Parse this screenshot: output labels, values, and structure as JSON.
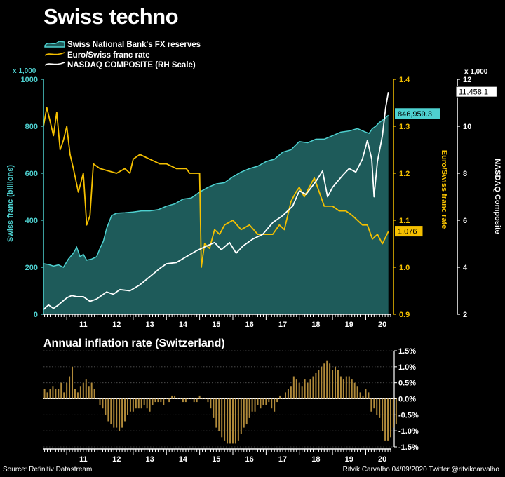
{
  "title": "Swiss techno",
  "source": "Source: Refinitiv Datastream",
  "credit": "Ritvik Carvalho 04/09/2020 Twitter @ritvikcarvalho",
  "colors": {
    "reserves": "#1e5b5a",
    "reserves_line": "#4ed1d0",
    "eurchf": "#f5c000",
    "nasdaq": "#ffffff",
    "inflation": "#b08a3a"
  },
  "chart_data": [
    {
      "type": "line",
      "title": "",
      "legend": [
        "Swiss National Bank's FX reserves",
        "Euro/Swiss franc rate",
        "NASDAQ COMPOSITE (RH Scale)"
      ],
      "legend_position": "top-left",
      "x_ticks": [
        "11",
        "12",
        "13",
        "14",
        "15",
        "16",
        "17",
        "18",
        "19",
        "20"
      ],
      "x_range": [
        2010.3,
        2020.75
      ],
      "axis_left": {
        "label": "Swiss franc (billions)",
        "unit": "x 1,000",
        "range": [
          0,
          1000
        ],
        "ticks": [
          "0",
          "200",
          "400",
          "600",
          "800",
          "1000"
        ]
      },
      "axis_mid": {
        "label": "Euro/Swiss franc rate",
        "range": [
          0.9,
          1.4
        ],
        "ticks": [
          "0.9",
          "1.0",
          "1.1",
          "1.2",
          "1.3",
          "1.4"
        ]
      },
      "axis_right": {
        "label": "NASDAQ Composite",
        "unit": "x 1,000",
        "range": [
          2,
          12
        ],
        "ticks": [
          "2",
          "4",
          "6",
          "8",
          "10",
          "12"
        ]
      },
      "series": [
        {
          "name": "Swiss National Bank's FX reserves",
          "axis": "left",
          "type": "area",
          "x": [
            2010.3,
            2010.45,
            2010.6,
            2010.75,
            2010.9,
            2011.05,
            2011.2,
            2011.3,
            2011.4,
            2011.5,
            2011.6,
            2011.75,
            2011.9,
            2012.0,
            2012.1,
            2012.2,
            2012.35,
            2012.5,
            2012.75,
            2013.0,
            2013.25,
            2013.5,
            2013.75,
            2014.0,
            2014.25,
            2014.5,
            2014.75,
            2015.0,
            2015.25,
            2015.5,
            2015.75,
            2016.0,
            2016.25,
            2016.5,
            2016.75,
            2017.0,
            2017.25,
            2017.5,
            2017.75,
            2018.0,
            2018.25,
            2018.5,
            2018.75,
            2019.0,
            2019.25,
            2019.5,
            2019.75,
            2020.0,
            2020.1,
            2020.2,
            2020.3,
            2020.4,
            2020.55,
            2020.68
          ],
          "values": [
            215,
            212,
            205,
            210,
            200,
            235,
            260,
            285,
            245,
            255,
            230,
            235,
            245,
            280,
            310,
            365,
            420,
            430,
            432,
            435,
            440,
            440,
            445,
            460,
            470,
            490,
            495,
            520,
            540,
            555,
            560,
            585,
            605,
            620,
            630,
            650,
            660,
            690,
            700,
            735,
            730,
            745,
            745,
            760,
            775,
            780,
            790,
            775,
            770,
            790,
            800,
            815,
            830,
            847
          ]
        },
        {
          "name": "Euro/Swiss franc rate",
          "axis": "mid",
          "x": [
            2010.3,
            2010.4,
            2010.5,
            2010.6,
            2010.7,
            2010.8,
            2010.9,
            2011.0,
            2011.1,
            2011.2,
            2011.35,
            2011.5,
            2011.6,
            2011.7,
            2011.8,
            2012.0,
            2012.5,
            2012.75,
            2012.9,
            2013.0,
            2013.2,
            2013.5,
            2013.8,
            2014.0,
            2014.3,
            2014.6,
            2014.7,
            2015.0,
            2015.05,
            2015.15,
            2015.3,
            2015.45,
            2015.6,
            2015.75,
            2016.0,
            2016.25,
            2016.5,
            2016.75,
            2017.0,
            2017.2,
            2017.4,
            2017.55,
            2017.75,
            2017.9,
            2018.0,
            2018.15,
            2018.3,
            2018.45,
            2018.6,
            2018.75,
            2018.9,
            2019.0,
            2019.2,
            2019.4,
            2019.6,
            2019.75,
            2019.9,
            2020.05,
            2020.2,
            2020.35,
            2020.5,
            2020.68
          ],
          "values": [
            1.3,
            1.34,
            1.31,
            1.28,
            1.33,
            1.25,
            1.27,
            1.3,
            1.24,
            1.21,
            1.16,
            1.2,
            1.09,
            1.11,
            1.22,
            1.21,
            1.2,
            1.21,
            1.2,
            1.23,
            1.24,
            1.23,
            1.22,
            1.22,
            1.21,
            1.21,
            1.2,
            1.2,
            1.0,
            1.05,
            1.04,
            1.08,
            1.07,
            1.09,
            1.1,
            1.08,
            1.09,
            1.07,
            1.07,
            1.07,
            1.09,
            1.08,
            1.14,
            1.16,
            1.17,
            1.15,
            1.17,
            1.19,
            1.16,
            1.13,
            1.13,
            1.13,
            1.12,
            1.12,
            1.11,
            1.1,
            1.09,
            1.09,
            1.06,
            1.07,
            1.05,
            1.076
          ]
        },
        {
          "name": "NASDAQ COMPOSITE (RH Scale)",
          "axis": "right",
          "x": [
            2010.3,
            2010.45,
            2010.6,
            2010.75,
            2011.0,
            2011.15,
            2011.3,
            2011.5,
            2011.7,
            2011.9,
            2012.2,
            2012.4,
            2012.6,
            2012.9,
            2013.2,
            2013.5,
            2013.8,
            2014.0,
            2014.3,
            2014.6,
            2014.9,
            2015.2,
            2015.45,
            2015.65,
            2015.9,
            2016.1,
            2016.3,
            2016.6,
            2016.9,
            2017.2,
            2017.5,
            2017.8,
            2018.0,
            2018.2,
            2018.5,
            2018.7,
            2018.85,
            2019.0,
            2019.3,
            2019.5,
            2019.7,
            2019.9,
            2020.05,
            2020.18,
            2020.25,
            2020.35,
            2020.5,
            2020.6,
            2020.68
          ],
          "values": [
            2.2,
            2.4,
            2.25,
            2.4,
            2.7,
            2.8,
            2.75,
            2.75,
            2.55,
            2.65,
            2.95,
            2.85,
            3.05,
            3.0,
            3.25,
            3.6,
            3.95,
            4.15,
            4.2,
            4.45,
            4.7,
            4.9,
            5.05,
            4.75,
            5.05,
            4.6,
            4.9,
            5.2,
            5.4,
            5.9,
            6.2,
            6.6,
            7.25,
            7.1,
            7.65,
            8.1,
            7.0,
            7.4,
            7.9,
            8.2,
            8.05,
            8.6,
            9.4,
            8.6,
            7.0,
            8.5,
            9.6,
            10.8,
            11.458
          ]
        }
      ],
      "value_labels": [
        {
          "series": "Swiss National Bank's FX reserves",
          "text": "846,959.3"
        },
        {
          "series": "Euro/Swiss franc rate",
          "text": "1.076"
        },
        {
          "series": "NASDAQ COMPOSITE (RH Scale)",
          "text": "11,458.1"
        }
      ]
    },
    {
      "type": "bar",
      "title": "Annual inflation rate (Switzerland)",
      "x_ticks": [
        "11",
        "12",
        "13",
        "14",
        "15",
        "16",
        "17",
        "18",
        "19",
        "20"
      ],
      "x_range": [
        2010.3,
        2020.75
      ],
      "axis": {
        "range": [
          -1.5,
          1.5
        ],
        "ticks": [
          "1.5%",
          "1.0%",
          "0.5%",
          "0.0%",
          "-0.5%",
          "-1.0%",
          "-1.5%"
        ]
      },
      "start": 2010.333,
      "frequency": "monthly",
      "values": [
        0.3,
        0.2,
        0.3,
        0.4,
        0.3,
        0.3,
        0.5,
        0.2,
        0.5,
        0.7,
        1.0,
        0.3,
        0.2,
        0.4,
        0.5,
        0.6,
        0.4,
        0.5,
        0.3,
        0.0,
        -0.2,
        -0.3,
        -0.5,
        -0.7,
        -0.8,
        -0.9,
        -0.9,
        -1.0,
        -0.9,
        -0.7,
        -0.5,
        -0.4,
        -0.4,
        -0.3,
        -0.3,
        -0.3,
        -0.2,
        -0.3,
        -0.4,
        -0.2,
        -0.1,
        -0.1,
        -0.1,
        -0.2,
        0.0,
        -0.1,
        0.1,
        0.1,
        0.0,
        0.0,
        -0.1,
        -0.1,
        0.0,
        0.0,
        -0.1,
        -0.1,
        0.1,
        0.0,
        0.0,
        -0.1,
        -0.3,
        -0.6,
        -0.9,
        -1.0,
        -1.2,
        -1.3,
        -1.4,
        -1.4,
        -1.4,
        -1.4,
        -1.3,
        -1.1,
        -0.9,
        -0.8,
        -0.6,
        -0.4,
        -0.4,
        -0.2,
        -0.3,
        -0.2,
        -0.2,
        -0.1,
        -0.3,
        -0.4,
        -0.1,
        0.1,
        0.0,
        0.2,
        0.3,
        0.4,
        0.7,
        0.6,
        0.5,
        0.4,
        0.6,
        0.5,
        0.6,
        0.7,
        0.8,
        0.9,
        1.0,
        1.1,
        1.2,
        1.1,
        0.9,
        1.0,
        0.9,
        0.7,
        0.6,
        0.7,
        0.7,
        0.6,
        0.5,
        0.4,
        0.2,
        0.1,
        0.3,
        0.2,
        -0.4,
        -0.3,
        -0.5,
        -0.6,
        -1.0,
        -1.3,
        -1.3,
        -1.2,
        -0.9,
        -0.8
      ]
    }
  ]
}
